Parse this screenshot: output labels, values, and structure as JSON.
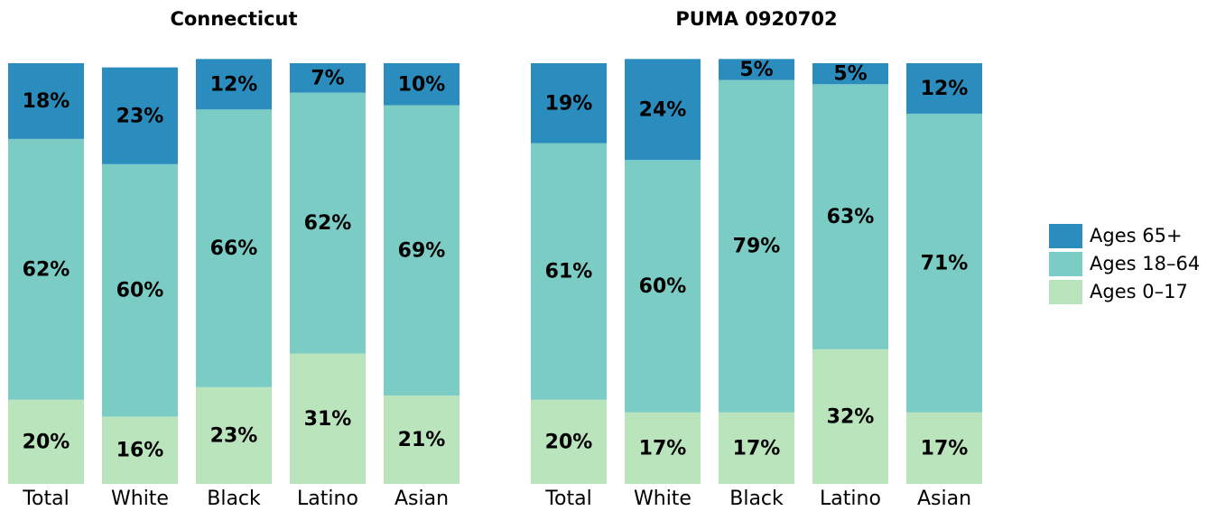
{
  "chart_data": [
    {
      "type": "stacked-bar",
      "title": "Connecticut",
      "categories": [
        "Total",
        "White",
        "Black",
        "Latino",
        "Asian"
      ],
      "ylim": [
        0,
        100
      ],
      "series": [
        {
          "color": "#bae4bc",
          "values": [
            20,
            16,
            23,
            31,
            21
          ],
          "value_labels": [
            "20%",
            "16%",
            "23%",
            "31%",
            "21%"
          ]
        },
        {
          "color": "#7bccc4",
          "values": [
            62,
            60,
            66,
            62,
            69
          ],
          "value_labels": [
            "62%",
            "60%",
            "66%",
            "62%",
            "69%"
          ]
        },
        {
          "color": "#2b8cbe",
          "values": [
            18,
            23,
            12,
            7,
            10
          ],
          "value_labels": [
            "18%",
            "23%",
            "12%",
            "7%",
            "10%"
          ]
        }
      ]
    },
    {
      "type": "stacked-bar",
      "title": "PUMA 0920702",
      "categories": [
        "Total",
        "White",
        "Black",
        "Latino",
        "Asian"
      ],
      "ylim": [
        0,
        100
      ],
      "series": [
        {
          "color": "#bae4bc",
          "values": [
            20,
            17,
            17,
            32,
            17
          ],
          "value_labels": [
            "20%",
            "17%",
            "17%",
            "32%",
            "17%"
          ]
        },
        {
          "color": "#7bccc4",
          "values": [
            61,
            60,
            79,
            63,
            71
          ],
          "value_labels": [
            "61%",
            "60%",
            "79%",
            "63%",
            "71%"
          ]
        },
        {
          "color": "#2b8cbe",
          "values": [
            19,
            24,
            5,
            5,
            12
          ],
          "value_labels": [
            "19%",
            "24%",
            "5%",
            "5%",
            "12%"
          ]
        }
      ]
    }
  ],
  "legend": {
    "items": [
      {
        "name": "Ages 65+",
        "color": "#2b8cbe"
      },
      {
        "name": "Ages 18–64",
        "color": "#7bccc4"
      },
      {
        "name": "Ages 0–17",
        "color": "#bae4bc"
      }
    ]
  }
}
